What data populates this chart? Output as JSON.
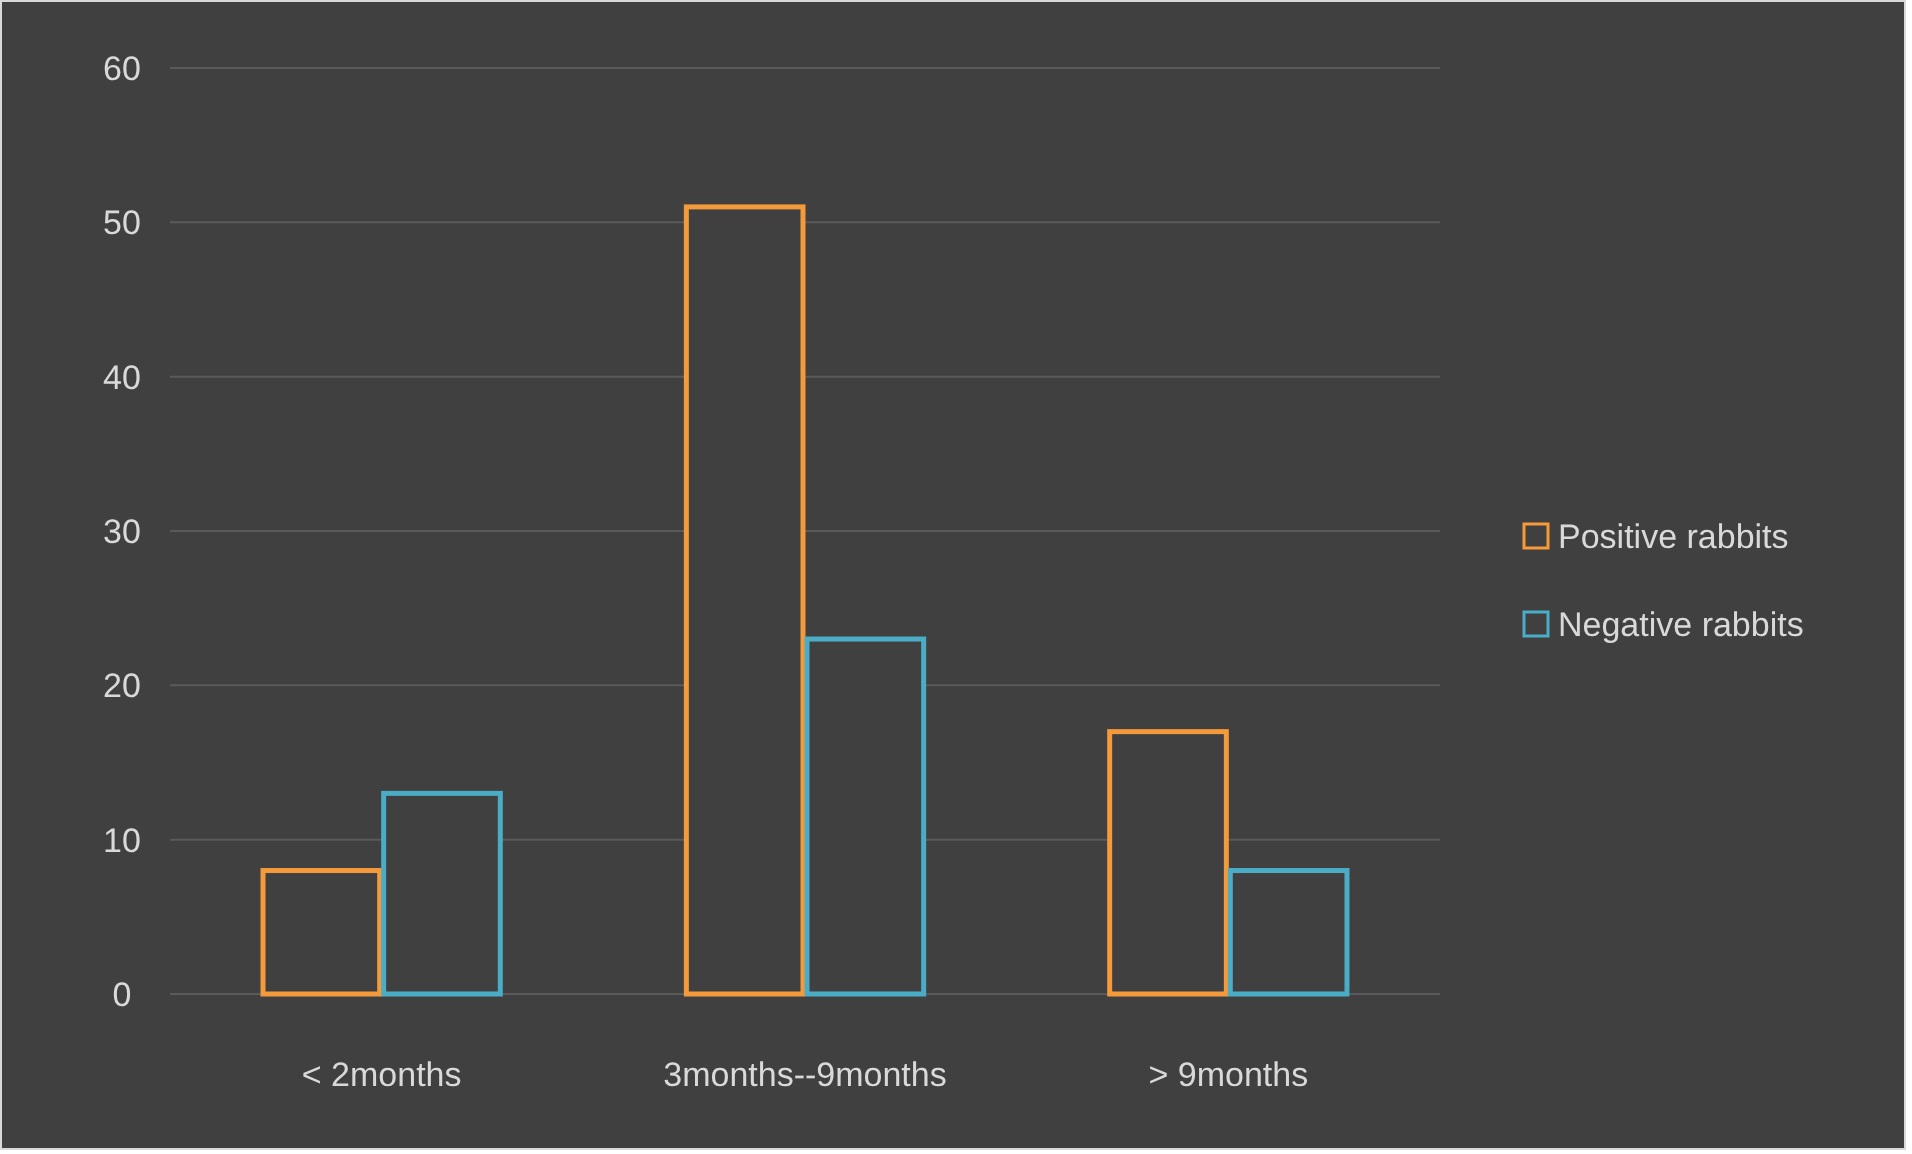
{
  "chart_data": {
    "type": "bar",
    "categories": [
      "< 2months",
      "3months--9months",
      "> 9months"
    ],
    "series": [
      {
        "name": "Positive rabbits",
        "color": "#f59a3a",
        "values": [
          8,
          51,
          17
        ]
      },
      {
        "name": "Negative rabbits",
        "color": "#4bacc6",
        "values": [
          13,
          23,
          8
        ]
      }
    ],
    "ylim": [
      0,
      60
    ],
    "yticks": [
      0,
      10,
      20,
      30,
      40,
      50,
      60
    ],
    "grid": "y",
    "legend": "right"
  }
}
